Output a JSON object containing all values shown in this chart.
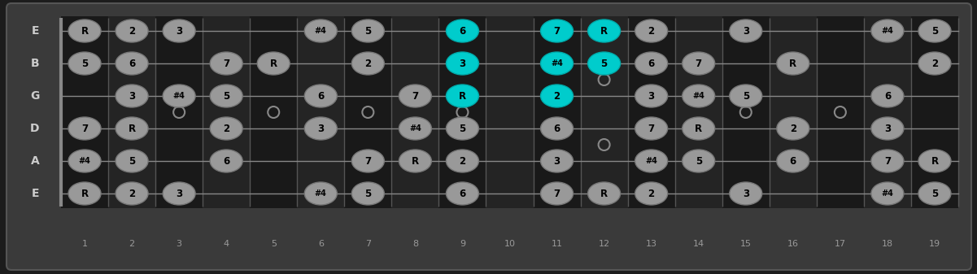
{
  "fig_width": 12.01,
  "fig_height": 3.37,
  "bg_outer": "#1c1c1c",
  "bg_board": "#2a2a2a",
  "fret_odd_color": "#1a1a1a",
  "fret_even_color": "#2d2d2d",
  "fret_line_color": "#444444",
  "nut_color": "#666666",
  "string_color": "#888888",
  "note_fill_normal": "#999999",
  "note_edge_normal": "#777777",
  "note_fill_highlight": "#00cccc",
  "note_edge_highlight": "#00aaaa",
  "note_text_color": "#000000",
  "string_label_color": "#cccccc",
  "fret_num_color": "#999999",
  "inlay_edge_color": "#888888",
  "n_frets": 19,
  "n_strings": 6,
  "string_names": [
    "E",
    "B",
    "G",
    "D",
    "A",
    "E"
  ],
  "inlay_single_frets": [
    3,
    5,
    7,
    9,
    15,
    17
  ],
  "inlay_double_frets": [
    12
  ],
  "fret_numbers": [
    1,
    2,
    3,
    4,
    5,
    6,
    7,
    8,
    9,
    10,
    11,
    12,
    13,
    14,
    15,
    16,
    17,
    18,
    19
  ],
  "notes": [
    {
      "s": 6,
      "f": 1,
      "t": "R",
      "h": false
    },
    {
      "s": 6,
      "f": 2,
      "t": "2",
      "h": false
    },
    {
      "s": 6,
      "f": 3,
      "t": "3",
      "h": false
    },
    {
      "s": 6,
      "f": 6,
      "t": "#4",
      "h": false
    },
    {
      "s": 6,
      "f": 7,
      "t": "5",
      "h": false
    },
    {
      "s": 6,
      "f": 9,
      "t": "6",
      "h": true
    },
    {
      "s": 6,
      "f": 11,
      "t": "7",
      "h": true
    },
    {
      "s": 6,
      "f": 12,
      "t": "R",
      "h": true
    },
    {
      "s": 6,
      "f": 13,
      "t": "2",
      "h": false
    },
    {
      "s": 6,
      "f": 15,
      "t": "3",
      "h": false
    },
    {
      "s": 6,
      "f": 18,
      "t": "#4",
      "h": false
    },
    {
      "s": 6,
      "f": 19,
      "t": "5",
      "h": false
    },
    {
      "s": 5,
      "f": 1,
      "t": "5",
      "h": false
    },
    {
      "s": 5,
      "f": 2,
      "t": "6",
      "h": false
    },
    {
      "s": 5,
      "f": 4,
      "t": "7",
      "h": false
    },
    {
      "s": 5,
      "f": 5,
      "t": "R",
      "h": false
    },
    {
      "s": 5,
      "f": 7,
      "t": "2",
      "h": false
    },
    {
      "s": 5,
      "f": 9,
      "t": "3",
      "h": true
    },
    {
      "s": 5,
      "f": 11,
      "t": "#4",
      "h": true
    },
    {
      "s": 5,
      "f": 12,
      "t": "5",
      "h": true
    },
    {
      "s": 5,
      "f": 13,
      "t": "6",
      "h": false
    },
    {
      "s": 5,
      "f": 14,
      "t": "7",
      "h": false
    },
    {
      "s": 5,
      "f": 16,
      "t": "R",
      "h": false
    },
    {
      "s": 5,
      "f": 19,
      "t": "2",
      "h": false
    },
    {
      "s": 4,
      "f": 2,
      "t": "3",
      "h": false
    },
    {
      "s": 4,
      "f": 3,
      "t": "#4",
      "h": false
    },
    {
      "s": 4,
      "f": 4,
      "t": "5",
      "h": false
    },
    {
      "s": 4,
      "f": 6,
      "t": "6",
      "h": false
    },
    {
      "s": 4,
      "f": 8,
      "t": "7",
      "h": false
    },
    {
      "s": 4,
      "f": 9,
      "t": "R",
      "h": true
    },
    {
      "s": 4,
      "f": 11,
      "t": "2",
      "h": true
    },
    {
      "s": 4,
      "f": 13,
      "t": "3",
      "h": false
    },
    {
      "s": 4,
      "f": 14,
      "t": "#4",
      "h": false
    },
    {
      "s": 4,
      "f": 15,
      "t": "5",
      "h": false
    },
    {
      "s": 4,
      "f": 18,
      "t": "6",
      "h": false
    },
    {
      "s": 3,
      "f": 1,
      "t": "7",
      "h": false
    },
    {
      "s": 3,
      "f": 2,
      "t": "R",
      "h": false
    },
    {
      "s": 3,
      "f": 4,
      "t": "2",
      "h": false
    },
    {
      "s": 3,
      "f": 6,
      "t": "3",
      "h": false
    },
    {
      "s": 3,
      "f": 8,
      "t": "#4",
      "h": false
    },
    {
      "s": 3,
      "f": 9,
      "t": "5",
      "h": false
    },
    {
      "s": 3,
      "f": 11,
      "t": "6",
      "h": false
    },
    {
      "s": 3,
      "f": 13,
      "t": "7",
      "h": false
    },
    {
      "s": 3,
      "f": 14,
      "t": "R",
      "h": false
    },
    {
      "s": 3,
      "f": 16,
      "t": "2",
      "h": false
    },
    {
      "s": 3,
      "f": 18,
      "t": "3",
      "h": false
    },
    {
      "s": 2,
      "f": 1,
      "t": "#4",
      "h": false
    },
    {
      "s": 2,
      "f": 2,
      "t": "5",
      "h": false
    },
    {
      "s": 2,
      "f": 4,
      "t": "6",
      "h": false
    },
    {
      "s": 2,
      "f": 7,
      "t": "7",
      "h": false
    },
    {
      "s": 2,
      "f": 8,
      "t": "R",
      "h": false
    },
    {
      "s": 2,
      "f": 9,
      "t": "2",
      "h": false
    },
    {
      "s": 2,
      "f": 11,
      "t": "3",
      "h": false
    },
    {
      "s": 2,
      "f": 13,
      "t": "#4",
      "h": false
    },
    {
      "s": 2,
      "f": 14,
      "t": "5",
      "h": false
    },
    {
      "s": 2,
      "f": 16,
      "t": "6",
      "h": false
    },
    {
      "s": 2,
      "f": 18,
      "t": "7",
      "h": false
    },
    {
      "s": 2,
      "f": 19,
      "t": "R",
      "h": false
    },
    {
      "s": 1,
      "f": 1,
      "t": "R",
      "h": false
    },
    {
      "s": 1,
      "f": 2,
      "t": "2",
      "h": false
    },
    {
      "s": 1,
      "f": 3,
      "t": "3",
      "h": false
    },
    {
      "s": 1,
      "f": 6,
      "t": "#4",
      "h": false
    },
    {
      "s": 1,
      "f": 7,
      "t": "5",
      "h": false
    },
    {
      "s": 1,
      "f": 9,
      "t": "6",
      "h": false
    },
    {
      "s": 1,
      "f": 11,
      "t": "7",
      "h": false
    },
    {
      "s": 1,
      "f": 12,
      "t": "R",
      "h": false
    },
    {
      "s": 1,
      "f": 13,
      "t": "2",
      "h": false
    },
    {
      "s": 1,
      "f": 15,
      "t": "3",
      "h": false
    },
    {
      "s": 1,
      "f": 18,
      "t": "#4",
      "h": false
    },
    {
      "s": 1,
      "f": 19,
      "t": "5",
      "h": false
    }
  ]
}
